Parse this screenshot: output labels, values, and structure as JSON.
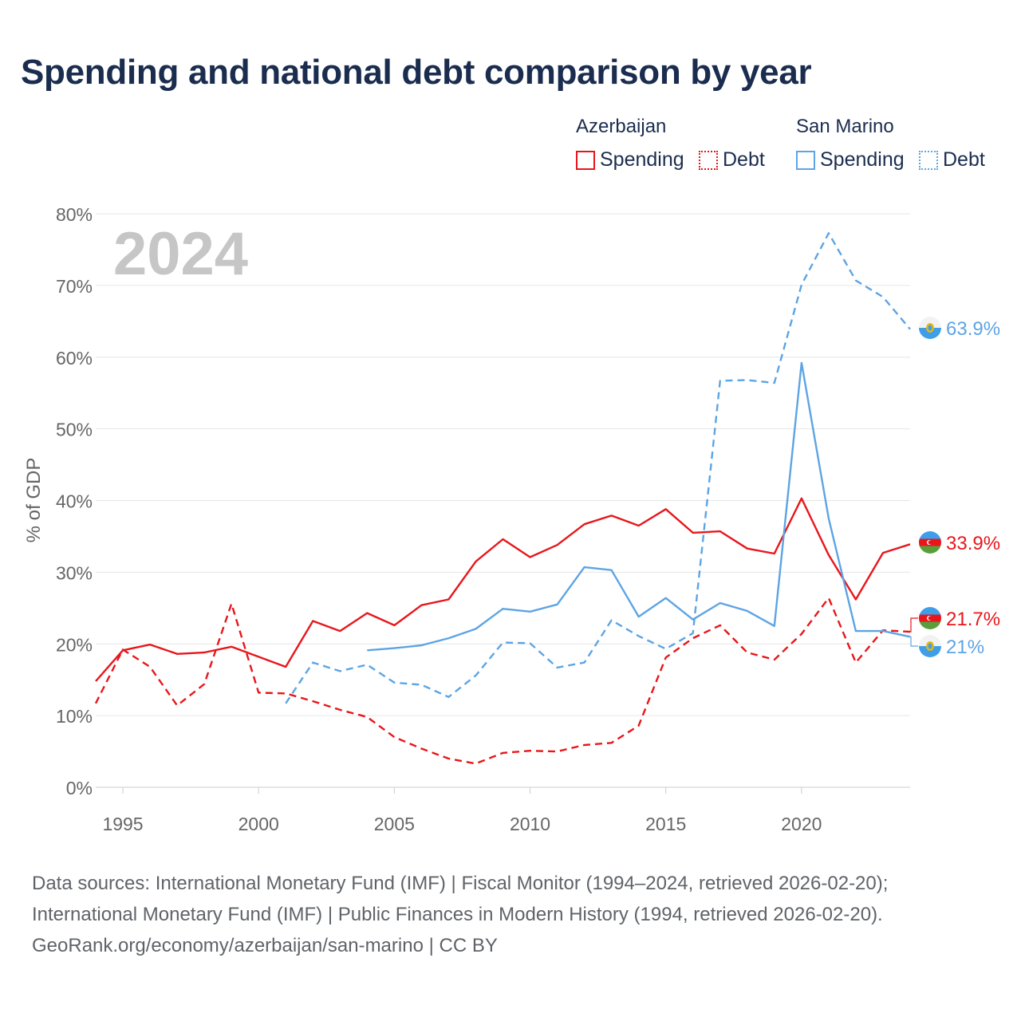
{
  "title": "Spending and national debt comparison by year",
  "year_overlay": "2024",
  "legend": {
    "groups": [
      {
        "country": "Azerbaijan",
        "color": "#e8161b",
        "items": [
          {
            "label": "Spending",
            "style": "solid"
          },
          {
            "label": "Debt",
            "style": "dotted"
          }
        ]
      },
      {
        "country": "San Marino",
        "color": "#5da4e4",
        "items": [
          {
            "label": "Spending",
            "style": "solid"
          },
          {
            "label": "Debt",
            "style": "dotted"
          }
        ]
      }
    ]
  },
  "sources": {
    "line1": "Data sources: International Monetary Fund (IMF) | Fiscal Monitor (1994–2024, retrieved 2026-02-20);",
    "line2": "International Monetary Fund (IMF) | Public Finances in Modern History (1994, retrieved 2026-02-20).",
    "line3": "GeoRank.org/economy/azerbaijan/san-marino | CC BY"
  },
  "chart_data": {
    "type": "line",
    "title": "Spending and national debt comparison by year",
    "xlabel": "",
    "ylabel": "% of GDP",
    "xlim": [
      1994,
      2024
    ],
    "ylim": [
      0,
      80
    ],
    "x_ticks": [
      1995,
      2000,
      2005,
      2010,
      2015,
      2020
    ],
    "y_ticks": [
      0,
      10,
      20,
      30,
      40,
      50,
      60,
      70,
      80
    ],
    "y_tick_labels": [
      "0%",
      "10%",
      "20%",
      "30%",
      "40%",
      "50%",
      "60%",
      "70%",
      "80%"
    ],
    "grid": true,
    "series": [
      {
        "name": "Azerbaijan Spending",
        "country": "Azerbaijan",
        "metric": "Spending",
        "color": "#e8161b",
        "dashed": false,
        "x": [
          1994,
          1995,
          1996,
          1997,
          1998,
          1999,
          2000,
          2001,
          2002,
          2003,
          2004,
          2005,
          2006,
          2007,
          2008,
          2009,
          2010,
          2011,
          2012,
          2013,
          2014,
          2015,
          2016,
          2017,
          2018,
          2019,
          2020,
          2021,
          2022,
          2023,
          2024
        ],
        "values": [
          14.8,
          19.1,
          19.9,
          18.6,
          18.8,
          19.6,
          18.2,
          16.8,
          23.2,
          21.8,
          24.3,
          22.6,
          25.4,
          26.2,
          31.5,
          34.6,
          32.1,
          33.8,
          36.7,
          37.9,
          36.5,
          38.8,
          35.5,
          35.7,
          33.3,
          32.6,
          40.3,
          32.4,
          26.2,
          32.7,
          33.9
        ],
        "end_label": "33.9%",
        "end_value": 33.9
      },
      {
        "name": "Azerbaijan Debt",
        "country": "Azerbaijan",
        "metric": "Debt",
        "color": "#e8161b",
        "dashed": true,
        "x": [
          1994,
          1995,
          1996,
          1997,
          1998,
          1999,
          2000,
          2001,
          2002,
          2003,
          2004,
          2005,
          2006,
          2007,
          2008,
          2009,
          2010,
          2011,
          2012,
          2013,
          2014,
          2015,
          2016,
          2017,
          2018,
          2019,
          2020,
          2021,
          2022,
          2023,
          2024
        ],
        "values": [
          11.7,
          19.2,
          16.8,
          11.4,
          14.4,
          25.6,
          13.2,
          13.1,
          12.0,
          10.8,
          9.8,
          7.0,
          5.4,
          4.0,
          3.3,
          4.8,
          5.1,
          5.0,
          5.9,
          6.2,
          8.6,
          18.1,
          20.8,
          22.6,
          18.8,
          17.8,
          21.4,
          26.4,
          17.4,
          21.9,
          21.7
        ],
        "end_label": "21.7%",
        "end_value": 21.7
      },
      {
        "name": "San Marino Spending",
        "country": "San Marino",
        "metric": "Spending",
        "color": "#5da4e4",
        "dashed": false,
        "x": [
          2004,
          2005,
          2006,
          2007,
          2008,
          2009,
          2010,
          2011,
          2012,
          2013,
          2014,
          2015,
          2016,
          2017,
          2018,
          2019,
          2020,
          2021,
          2022,
          2023,
          2024
        ],
        "values": [
          19.1,
          19.4,
          19.8,
          20.8,
          22.1,
          24.9,
          24.5,
          25.5,
          30.7,
          30.3,
          23.8,
          26.4,
          23.4,
          25.7,
          24.6,
          22.5,
          59.2,
          37.5,
          21.8,
          21.8,
          21.0
        ],
        "end_label": "21%",
        "end_value": 21.0
      },
      {
        "name": "San Marino Debt",
        "country": "San Marino",
        "metric": "Debt",
        "color": "#5da4e4",
        "dashed": true,
        "x": [
          2001,
          2002,
          2003,
          2004,
          2005,
          2006,
          2007,
          2008,
          2009,
          2010,
          2011,
          2012,
          2013,
          2014,
          2015,
          2016,
          2017,
          2018,
          2019,
          2020,
          2021,
          2022,
          2023,
          2024
        ],
        "values": [
          11.7,
          17.4,
          16.2,
          17.1,
          14.6,
          14.3,
          12.6,
          15.6,
          20.2,
          20.1,
          16.7,
          17.4,
          23.3,
          21.1,
          19.3,
          21.5,
          56.7,
          56.8,
          56.4,
          70.1,
          77.3,
          70.7,
          68.4,
          63.9
        ],
        "end_label": "63.9%",
        "end_value": 63.9
      }
    ]
  }
}
